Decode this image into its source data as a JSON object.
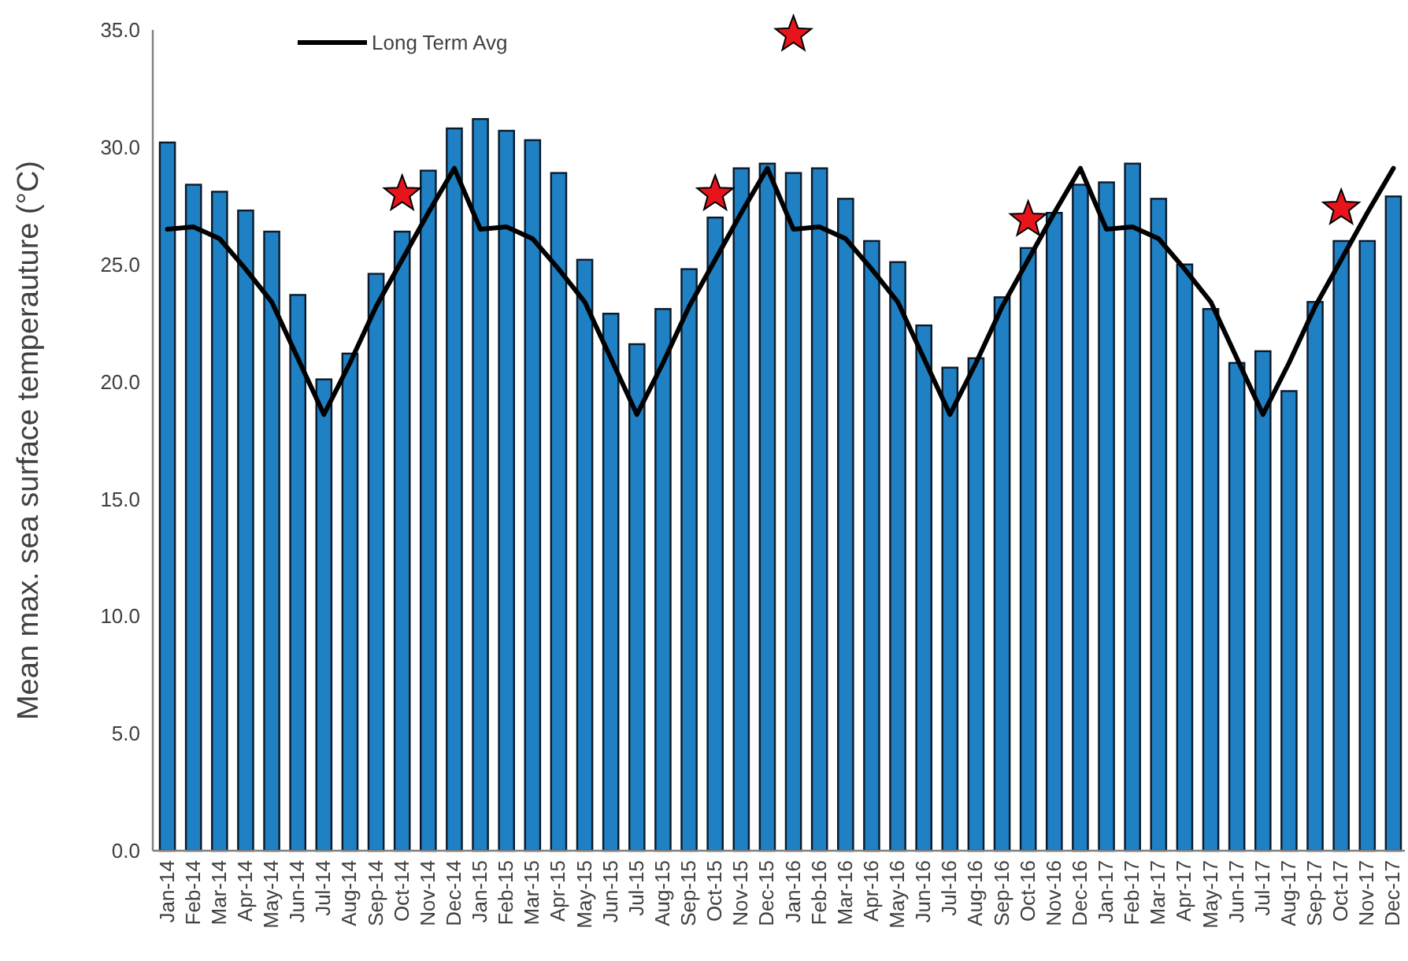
{
  "chart_data": {
    "type": "bar",
    "ylabel": "Mean max. sea surface temperauture (°C)",
    "categories": [
      "Jan-14",
      "Feb-14",
      "Mar-14",
      "Apr-14",
      "May-14",
      "Jun-14",
      "Jul-14",
      "Aug-14",
      "Sep-14",
      "Oct-14",
      "Nov-14",
      "Dec-14",
      "Jan-15",
      "Feb-15",
      "Mar-15",
      "Apr-15",
      "May-15",
      "Jun-15",
      "Jul-15",
      "Aug-15",
      "Sep-15",
      "Oct-15",
      "Nov-15",
      "Dec-15",
      "Jan-16",
      "Feb-16",
      "Mar-16",
      "Apr-16",
      "May-16",
      "Jun-16",
      "Jul-16",
      "Aug-16",
      "Sep-16",
      "Oct-16",
      "Nov-16",
      "Dec-16",
      "Jan-17",
      "Feb-17",
      "Mar-17",
      "Apr-17",
      "May-17",
      "Jun-17",
      "Jul-17",
      "Aug-17",
      "Sep-17",
      "Oct-17",
      "Nov-17",
      "Dec-17"
    ],
    "series": [
      {
        "color": "#1f80c4",
        "values": [
          30.2,
          28.4,
          28.1,
          27.3,
          26.4,
          23.7,
          20.1,
          21.2,
          24.6,
          26.4,
          29.0,
          30.8,
          31.2,
          30.7,
          30.3,
          28.9,
          25.2,
          22.9,
          21.6,
          23.1,
          24.8,
          27.0,
          29.1,
          29.3,
          28.9,
          29.1,
          27.8,
          26.0,
          25.1,
          22.4,
          20.6,
          21.0,
          23.6,
          25.7,
          27.2,
          28.4,
          28.5,
          29.3,
          27.8,
          25.0,
          23.1,
          20.8,
          21.3,
          19.6,
          23.4,
          26.0,
          26.0,
          27.9
        ]
      },
      {
        "type": "line",
        "name": "Long Term Avg",
        "color": "#000000",
        "marker": "none",
        "line_style": "solid",
        "values": [
          26.5,
          26.6,
          26.1,
          24.8,
          23.4,
          21.0,
          18.6,
          20.8,
          23.2,
          25.2,
          27.2,
          29.1,
          26.5,
          26.6,
          26.1,
          24.8,
          23.4,
          21.0,
          18.6,
          20.8,
          23.2,
          25.2,
          27.2,
          29.1,
          26.5,
          26.6,
          26.1,
          24.8,
          23.4,
          21.0,
          18.6,
          20.8,
          23.2,
          25.2,
          27.2,
          29.1,
          26.5,
          26.6,
          26.1,
          24.8,
          23.4,
          21.0,
          18.6,
          20.8,
          23.2,
          25.2,
          27.2,
          29.1
        ]
      },
      {
        "type": "scatter",
        "color": "#e8141c",
        "marker": "star",
        "x": [
          "Oct-14",
          "Oct-15",
          "Jan-16",
          "Oct-16",
          "Oct-17"
        ],
        "values": [
          28.0,
          28.0,
          34.8,
          26.9,
          27.4
        ]
      }
    ],
    "ylim": [
      0,
      35
    ],
    "yticks": [
      {
        "value": 0,
        "label": "0.0"
      },
      {
        "value": 5,
        "label": "5.0"
      },
      {
        "value": 10,
        "label": "10.0"
      },
      {
        "value": 15,
        "label": "15.0"
      },
      {
        "value": 20,
        "label": "20.0"
      },
      {
        "value": 25,
        "label": "25.0"
      },
      {
        "value": 30,
        "label": "30.0"
      },
      {
        "value": 35,
        "label": "35.0"
      }
    ],
    "grid": false,
    "legend": "top left"
  }
}
